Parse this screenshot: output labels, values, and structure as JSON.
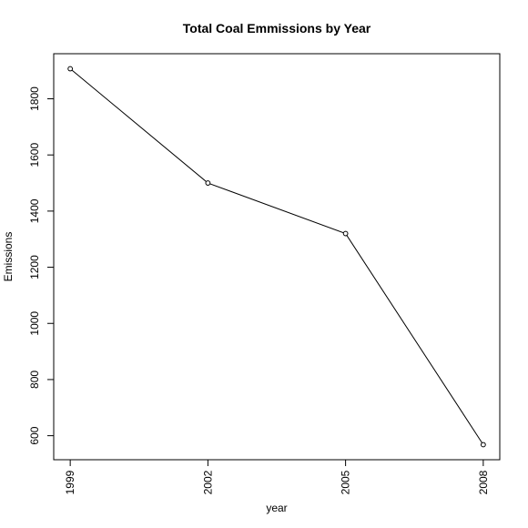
{
  "chart_data": {
    "type": "line",
    "title": "Total Coal Emmissions by Year",
    "xlabel": "year",
    "ylabel": "Emissions",
    "x": [
      1999,
      2002,
      2005,
      2008
    ],
    "series": [
      {
        "values": [
          1907,
          1500,
          1320,
          568
        ]
      }
    ],
    "xticks": [
      "1999",
      "2002",
      "2005",
      "2008"
    ],
    "yticks": [
      "600",
      "800",
      "1000",
      "1200",
      "1400",
      "1600",
      "1800"
    ],
    "xlim": [
      1999,
      2008
    ],
    "ylim": [
      568,
      1907
    ],
    "grid": false,
    "legend": "none",
    "line_color": "#000000",
    "marker": "open-circle"
  }
}
